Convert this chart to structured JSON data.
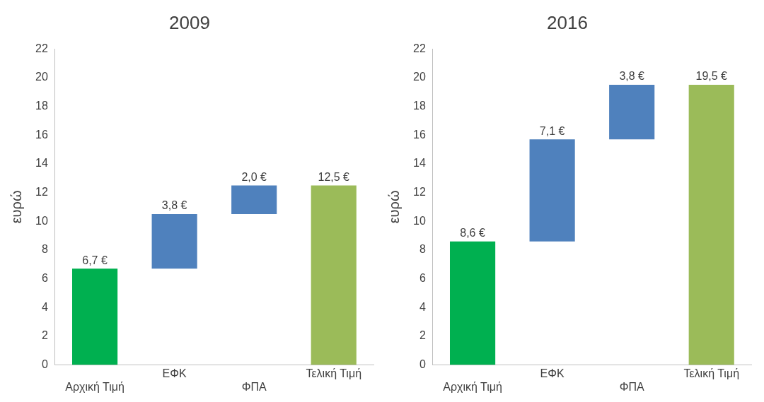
{
  "chart_data": [
    {
      "type": "bar",
      "title": "2009",
      "ylabel": "ευρώ",
      "categories": [
        "Αρχική Τιμή",
        "ΕΦΚ",
        "ΦΠΑ",
        "Τελική Τιμή"
      ],
      "values": [
        6.7,
        3.8,
        2.0,
        12.5
      ],
      "base": [
        0,
        6.7,
        10.5,
        0
      ],
      "colors": [
        "#00b050",
        "#4f81bd",
        "#4f81bd",
        "#9bbb59"
      ],
      "value_labels": [
        "6,7 €",
        "3,8 €",
        "2,0 €",
        "12,5 €"
      ],
      "ylim": [
        0,
        22
      ],
      "yticks": [
        0,
        2,
        4,
        6,
        8,
        10,
        12,
        14,
        16,
        18,
        20,
        22
      ],
      "grid": false
    },
    {
      "type": "bar",
      "title": "2016",
      "ylabel": "ευρώ",
      "categories": [
        "Αρχική Τιμή",
        "ΕΦΚ",
        "ΦΠΑ",
        "Τελική Τιμή"
      ],
      "values": [
        8.6,
        7.1,
        3.8,
        19.5
      ],
      "base": [
        0,
        8.6,
        15.7,
        0
      ],
      "colors": [
        "#00b050",
        "#4f81bd",
        "#4f81bd",
        "#9bbb59"
      ],
      "value_labels": [
        "8,6 €",
        "7,1 €",
        "3,8 €",
        "19,5 €"
      ],
      "ylim": [
        0,
        22
      ],
      "yticks": [
        0,
        2,
        4,
        6,
        8,
        10,
        12,
        14,
        16,
        18,
        20,
        22
      ],
      "grid": false
    }
  ]
}
